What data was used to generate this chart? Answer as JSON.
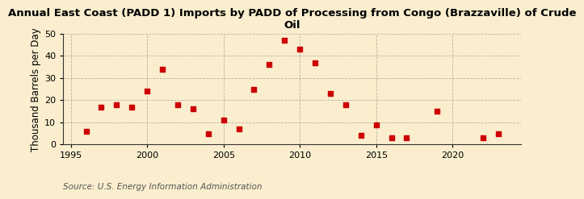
{
  "title": "Annual East Coast (PADD 1) Imports by PADD of Processing from Congo (Brazzaville) of Crude\nOil",
  "ylabel": "Thousand Barrels per Day",
  "source": "Source: U.S. Energy Information Administration",
  "background_color": "#faeece",
  "marker_color": "#cc0000",
  "years": [
    1996,
    1997,
    1998,
    1999,
    2000,
    2001,
    2002,
    2003,
    2004,
    2005,
    2006,
    2007,
    2008,
    2009,
    2010,
    2011,
    2012,
    2013,
    2014,
    2015,
    2016,
    2017,
    2019,
    2022,
    2023
  ],
  "values": [
    6,
    17,
    18,
    17,
    24,
    34,
    18,
    16,
    5,
    11,
    7,
    25,
    36,
    47,
    43,
    37,
    23,
    18,
    4,
    9,
    3,
    3,
    15,
    3,
    5
  ],
  "xlim": [
    1994.5,
    2024.5
  ],
  "ylim": [
    0,
    50
  ],
  "yticks": [
    0,
    10,
    20,
    30,
    40,
    50
  ],
  "xticks": [
    1995,
    2000,
    2005,
    2010,
    2015,
    2020
  ],
  "grid_color": "#999999",
  "title_fontsize": 9.5,
  "label_fontsize": 8.5,
  "tick_fontsize": 8,
  "source_fontsize": 7.5
}
